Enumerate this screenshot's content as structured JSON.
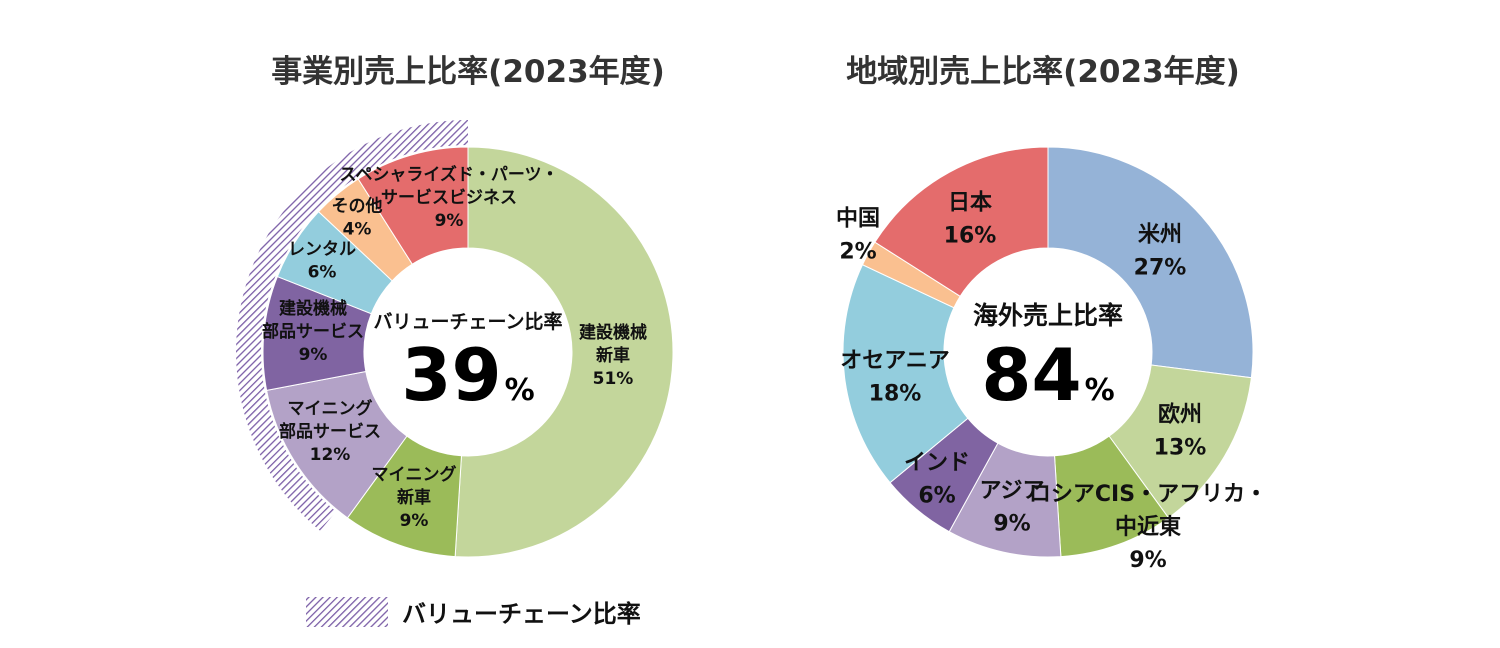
{
  "colors": {
    "light_green": "#C3D69B",
    "green": "#9BBB59",
    "lavender": "#B3A2C7",
    "purple": "#8064A2",
    "light_blue": "#93CDDD",
    "peach": "#FAC090",
    "red": "#E46C6C",
    "blue": "#95B3D7",
    "hatch": "#7B5EA7"
  },
  "chart_data": [
    {
      "type": "pie",
      "title": "事業別売上比率(2023年度)",
      "center_text": {
        "subtitle": "バリューチェーン比率",
        "value": "39",
        "unit": "%"
      },
      "slices": [
        {
          "lines": [
            "建設機械",
            "新車",
            "51%"
          ],
          "value": 51,
          "color": "#C3D69B"
        },
        {
          "lines": [
            "マイニング",
            "新車",
            "9%"
          ],
          "value": 9,
          "color": "#9BBB59"
        },
        {
          "lines": [
            "マイニング",
            "部品サービス",
            "12%"
          ],
          "value": 12,
          "color": "#B3A2C7"
        },
        {
          "lines": [
            "建設機械",
            "部品サービス",
            "9%"
          ],
          "value": 9,
          "color": "#8064A2"
        },
        {
          "lines": [
            "レンタル",
            "6%"
          ],
          "value": 6,
          "color": "#93CDDD"
        },
        {
          "lines": [
            "その他",
            "4%"
          ],
          "value": 4,
          "color": "#FAC090"
        },
        {
          "lines": [
            "スペシャライズド・パーツ・",
            "サービスビジネス",
            "9%"
          ],
          "value": 9,
          "color": "#E46C6C"
        }
      ],
      "value_chain_band": {
        "value": 39,
        "legend_label": "バリューチェーン比率"
      }
    },
    {
      "type": "pie",
      "title": "地域別売上比率(2023年度)",
      "center_text": {
        "subtitle": "海外売上比率",
        "value": "84",
        "unit": "%"
      },
      "slices": [
        {
          "lines": [
            "米州",
            "27%"
          ],
          "value": 27,
          "color": "#95B3D7"
        },
        {
          "lines": [
            "欧州",
            "13%"
          ],
          "value": 13,
          "color": "#C3D69B"
        },
        {
          "lines": [
            "ロシアCIS・アフリカ・",
            "中近東",
            "9%"
          ],
          "value": 9,
          "color": "#9BBB59"
        },
        {
          "lines": [
            "アジア",
            "9%"
          ],
          "value": 9,
          "color": "#B3A2C7"
        },
        {
          "lines": [
            "インド",
            "6%"
          ],
          "value": 6,
          "color": "#8064A2"
        },
        {
          "lines": [
            "オセアニア",
            "18%"
          ],
          "value": 18,
          "color": "#93CDDD"
        },
        {
          "lines": [
            "中国",
            "2%"
          ],
          "value": 2,
          "color": "#FAC090"
        },
        {
          "lines": [
            "日本",
            "16%"
          ],
          "value": 16,
          "color": "#E46C6C"
        }
      ]
    }
  ]
}
